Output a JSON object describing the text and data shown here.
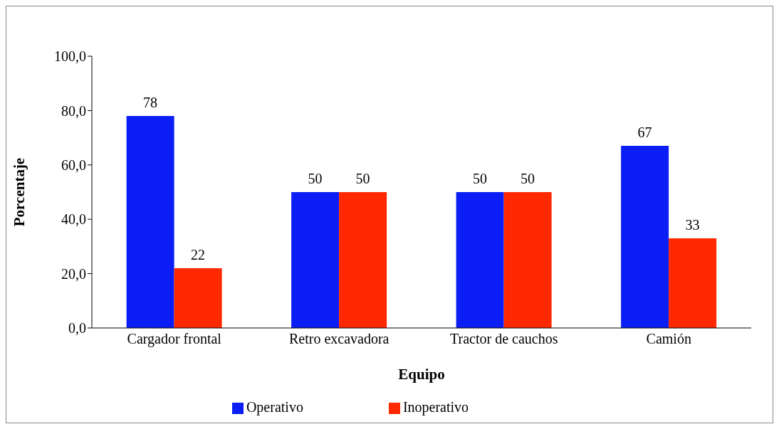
{
  "chart_data": {
    "type": "bar",
    "xlabel": "Equipo",
    "ylabel": "Porcentaje",
    "categories": [
      "Cargador frontal",
      "Retro excavadora",
      "Tractor de cauchos",
      "Camión"
    ],
    "series": [
      {
        "name": "Operativo",
        "color": "#0a1ef5",
        "values": [
          78,
          50,
          50,
          67
        ]
      },
      {
        "name": "Inoperativo",
        "color": "#ff2800",
        "values": [
          22,
          50,
          50,
          33
        ]
      }
    ],
    "ylim": [
      0,
      100
    ],
    "yticks": [
      {
        "value": 0,
        "label": "0,0"
      },
      {
        "value": 20,
        "label": "20,0"
      },
      {
        "value": 40,
        "label": "40,0"
      },
      {
        "value": 60,
        "label": "60,0"
      },
      {
        "value": 80,
        "label": "80,0"
      },
      {
        "value": 100,
        "label": "100,0"
      }
    ],
    "data_labels": true,
    "legend": "bottom",
    "grid": false
  }
}
